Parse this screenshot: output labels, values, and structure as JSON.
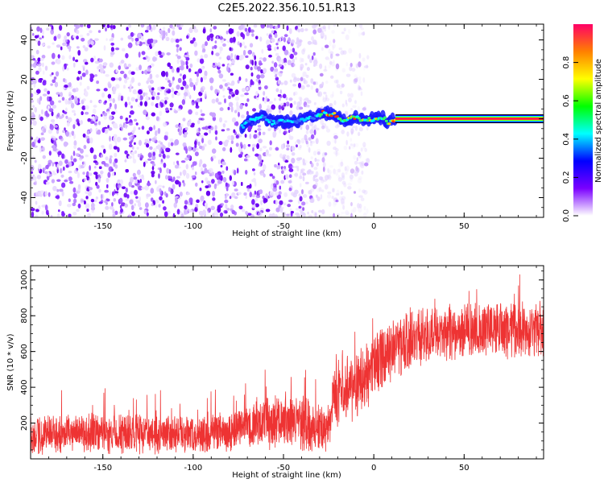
{
  "chart_data": [
    {
      "type": "heatmap",
      "title": "C2E5.2022.356.10.51.R13",
      "xlabel": "Height of straight line (km)",
      "ylabel": "Frequency (Hz)",
      "xlim": [
        -190,
        94
      ],
      "ylim": [
        -50,
        48
      ],
      "xticks": [
        -150,
        -100,
        -50,
        0,
        50
      ],
      "yticks": [
        -40,
        -20,
        0,
        20,
        40
      ],
      "colorbar": {
        "label": "Normalized spectral amplitude",
        "range": [
          0.0,
          1.0
        ],
        "ticks": [
          "0.0",
          "0.2",
          "0.4",
          "0.6",
          "0.8"
        ],
        "colors": [
          "#ffffff",
          "#7a00ff",
          "#0000ff",
          "#00ffff",
          "#00ff00",
          "#ffff00",
          "#ff8000",
          "#ff0066"
        ]
      },
      "features": {
        "noise_region_x": [
          -190,
          -28
        ],
        "doppler_track": [
          {
            "x": -73,
            "y": -4
          },
          {
            "x": -68,
            "y": -1
          },
          {
            "x": -62,
            "y": 1
          },
          {
            "x": -56,
            "y": -2
          },
          {
            "x": -50,
            "y": -1
          },
          {
            "x": -45,
            "y": -2
          },
          {
            "x": -38,
            "y": 0
          },
          {
            "x": -32,
            "y": 1
          },
          {
            "x": -28,
            "y": 3
          },
          {
            "x": -22,
            "y": 2
          },
          {
            "x": -16,
            "y": -1
          },
          {
            "x": -10,
            "y": 1
          },
          {
            "x": -5,
            "y": -1
          },
          {
            "x": 0,
            "y": 0
          },
          {
            "x": 5,
            "y": 1
          },
          {
            "x": 8,
            "y": -2
          },
          {
            "x": 12,
            "y": 0
          },
          {
            "x": 94,
            "y": 0
          }
        ],
        "steady_tone_start_x": 12
      }
    },
    {
      "type": "line",
      "title": "",
      "xlabel": "Height of straight line (km)",
      "ylabel": "SNR (10 * v/v)",
      "xlim": [
        -190,
        94
      ],
      "ylim": [
        0,
        1080
      ],
      "xticks": [
        -150,
        -100,
        -50,
        0,
        50
      ],
      "yticks": [
        200,
        400,
        600,
        800,
        1000
      ],
      "series": [
        {
          "name": "SNR",
          "color": "#ee3333",
          "envelope": [
            {
              "x": -190,
              "low": 20,
              "high": 250
            },
            {
              "x": -150,
              "low": 20,
              "high": 260
            },
            {
              "x": -100,
              "low": 20,
              "high": 250
            },
            {
              "x": -75,
              "low": 30,
              "high": 280
            },
            {
              "x": -60,
              "low": 40,
              "high": 360
            },
            {
              "x": -40,
              "low": 40,
              "high": 360
            },
            {
              "x": -25,
              "low": 20,
              "high": 300
            },
            {
              "x": -22,
              "low": 150,
              "high": 550
            },
            {
              "x": -10,
              "low": 200,
              "high": 600
            },
            {
              "x": 0,
              "low": 320,
              "high": 700
            },
            {
              "x": 10,
              "low": 420,
              "high": 780
            },
            {
              "x": 25,
              "low": 500,
              "high": 850
            },
            {
              "x": 50,
              "low": 550,
              "high": 870
            },
            {
              "x": 94,
              "low": 560,
              "high": 900
            }
          ]
        }
      ]
    }
  ]
}
